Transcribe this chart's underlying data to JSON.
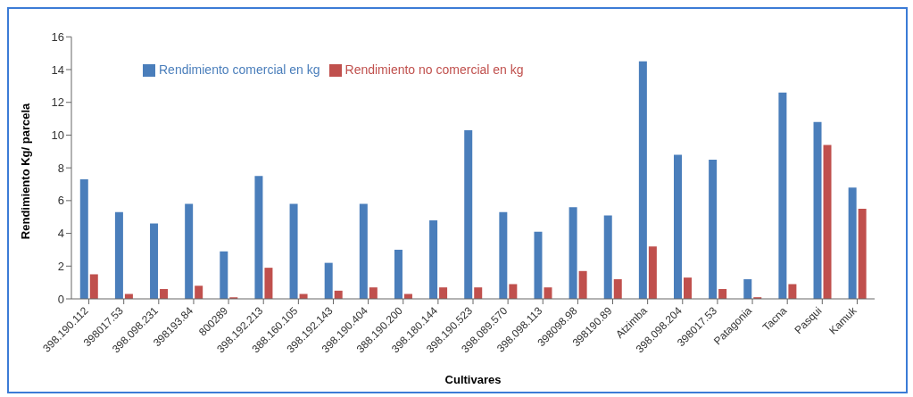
{
  "chart_data": {
    "type": "bar",
    "xlabel": "Cultivares",
    "ylabel": "Rendimiento Kg/ parcela",
    "categories": [
      "398.190.112",
      "398017.53",
      "398.098.231",
      "398193.84",
      "800289",
      "398.192.213",
      "388.160.105",
      "398.192.143",
      "398.190.404",
      "388.190.200",
      "398.180.144",
      "398.190.523",
      "398.089.570",
      "398.098.113",
      "398098.98",
      "398190.89",
      "Atzimba",
      "398.098.204",
      "398017.53",
      "Patagonia",
      "Tacna",
      "Pasqui",
      "Kamuk"
    ],
    "series": [
      {
        "name": "Rendimiento comercial en kg",
        "color": "#4a7ebb",
        "values": [
          7.3,
          5.3,
          4.6,
          5.8,
          2.9,
          7.5,
          5.8,
          2.2,
          5.8,
          3.0,
          4.8,
          10.3,
          5.3,
          4.1,
          5.6,
          5.1,
          14.5,
          8.8,
          8.5,
          1.2,
          12.6,
          10.8,
          6.8
        ]
      },
      {
        "name": "Rendimiento no comercial en kg",
        "color": "#c0504d",
        "values": [
          1.5,
          0.3,
          0.6,
          0.8,
          0.1,
          1.9,
          0.3,
          0.5,
          0.7,
          0.3,
          0.7,
          0.7,
          0.9,
          0.7,
          1.7,
          1.2,
          3.2,
          1.3,
          0.6,
          0.1,
          0.9,
          9.4,
          5.5
        ]
      }
    ],
    "ylim": [
      0,
      16
    ],
    "yticks": [
      0,
      2,
      4,
      6,
      8,
      10,
      12,
      14,
      16
    ],
    "grid": false,
    "legend": "top left"
  }
}
